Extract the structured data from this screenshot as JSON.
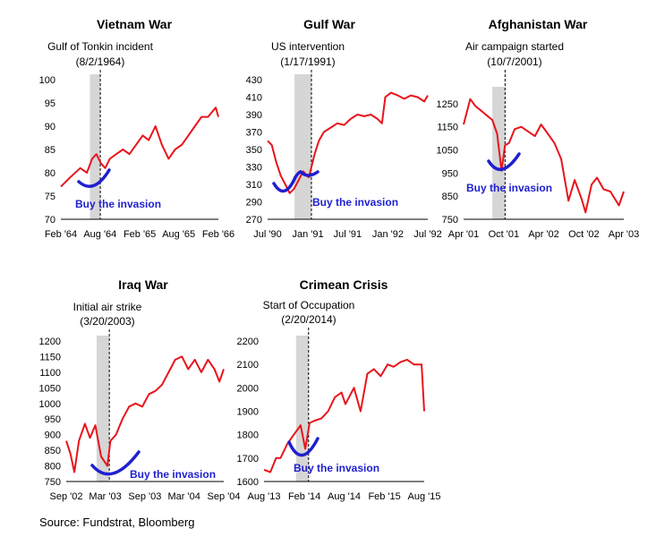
{
  "source": "Source: Fundstrat, Bloomberg",
  "colors": {
    "series": "#e8141b",
    "annotation": "#1f1fd0",
    "shade": "#d6d6d6",
    "axis": "#000000"
  },
  "chart_data": [
    {
      "type": "line",
      "title": "Vietnam War",
      "event": {
        "label": "Gulf of Tonkin incident",
        "date_label": "(8/2/1964)",
        "shade": [
          "1964-06-15",
          "1964-08-02"
        ],
        "date": "1964-08-02"
      },
      "annotation": "Buy the invasion",
      "xlim": [
        "1964-02-01",
        "1966-02-01"
      ],
      "ylim": [
        70,
        100
      ],
      "yticks": [
        70,
        75,
        80,
        85,
        90,
        95,
        100
      ],
      "xticks": [
        {
          "date": "1964-02-01",
          "label": "Feb '64"
        },
        {
          "date": "1964-08-01",
          "label": "Aug '64"
        },
        {
          "date": "1965-02-01",
          "label": "Feb '65"
        },
        {
          "date": "1965-08-01",
          "label": "Aug '65"
        },
        {
          "date": "1966-02-01",
          "label": "Feb '66"
        }
      ],
      "series": [
        {
          "x": [
            "1964-02-01",
            "1964-03-15",
            "1964-05-01",
            "1964-06-01",
            "1964-06-25",
            "1964-07-15",
            "1964-08-05",
            "1964-08-25",
            "1964-09-15",
            "1964-10-15",
            "1964-11-15",
            "1964-12-15",
            "1965-01-15",
            "1965-02-15",
            "1965-03-15",
            "1965-04-15",
            "1965-05-15",
            "1965-06-15",
            "1965-07-15",
            "1965-08-15",
            "1965-09-15",
            "1965-10-15",
            "1965-11-15",
            "1965-12-15",
            "1966-01-20",
            "1966-02-01"
          ],
          "y": [
            77,
            79,
            81,
            80,
            83,
            84,
            82,
            81,
            83,
            84,
            85,
            84,
            86,
            88,
            87,
            90,
            86,
            83,
            85,
            86,
            88,
            90,
            92,
            92,
            94,
            92
          ]
        }
      ]
    },
    {
      "type": "line",
      "title": "Gulf War",
      "event": {
        "label": "US intervention",
        "date_label": "(1/17/1991)",
        "shade": [
          "1990-11-01",
          "1991-01-17"
        ],
        "date": "1991-01-17"
      },
      "annotation": "Buy the invasion",
      "xlim": [
        "1990-07-01",
        "1992-07-01"
      ],
      "ylim": [
        270,
        430
      ],
      "yticks": [
        270,
        290,
        310,
        330,
        350,
        370,
        390,
        410,
        430
      ],
      "xticks": [
        {
          "date": "1990-07-01",
          "label": "Jul '90"
        },
        {
          "date": "1991-01-01",
          "label": "Jan '91"
        },
        {
          "date": "1991-07-01",
          "label": "Jul '91"
        },
        {
          "date": "1992-01-01",
          "label": "Jan '92"
        },
        {
          "date": "1992-07-01",
          "label": "Jul '92"
        }
      ],
      "series": [
        {
          "x": [
            "1990-07-01",
            "1990-07-20",
            "1990-08-10",
            "1990-08-30",
            "1990-09-20",
            "1990-10-10",
            "1990-10-30",
            "1990-11-20",
            "1990-12-10",
            "1991-01-05",
            "1991-01-17",
            "1991-02-01",
            "1991-02-20",
            "1991-03-15",
            "1991-04-15",
            "1991-05-15",
            "1991-06-15",
            "1991-07-15",
            "1991-08-15",
            "1991-09-15",
            "1991-10-15",
            "1991-11-15",
            "1991-12-05",
            "1991-12-20",
            "1992-01-15",
            "1992-02-15",
            "1992-03-15",
            "1992-04-15",
            "1992-05-15",
            "1992-06-15",
            "1992-07-01"
          ],
          "y": [
            360,
            355,
            335,
            320,
            310,
            300,
            305,
            315,
            325,
            318,
            330,
            345,
            360,
            370,
            375,
            380,
            378,
            385,
            390,
            388,
            390,
            385,
            380,
            410,
            415,
            412,
            408,
            412,
            410,
            405,
            412
          ]
        }
      ]
    },
    {
      "type": "line",
      "title": "Afghanistan War",
      "event": {
        "label": "Air campaign started",
        "date_label": "(10/7/2001)",
        "shade": [
          "2001-08-10",
          "2001-10-07"
        ],
        "date": "2001-10-07"
      },
      "annotation": "Buy the invasion",
      "xlim": [
        "2001-04-01",
        "2003-04-01"
      ],
      "ylim": [
        750,
        1300
      ],
      "yticks": [
        750,
        850,
        950,
        1050,
        1150,
        1250
      ],
      "xticks": [
        {
          "date": "2001-04-01",
          "label": "Apr '01"
        },
        {
          "date": "2001-10-01",
          "label": "Oct '01"
        },
        {
          "date": "2002-04-01",
          "label": "Apr '02"
        },
        {
          "date": "2002-10-01",
          "label": "Oct '02"
        },
        {
          "date": "2003-04-01",
          "label": "Apr '03"
        }
      ],
      "series": [
        {
          "x": [
            "2001-04-01",
            "2001-05-01",
            "2001-05-25",
            "2001-06-20",
            "2001-07-15",
            "2001-08-10",
            "2001-09-01",
            "2001-09-21",
            "2001-10-07",
            "2001-10-25",
            "2001-11-20",
            "2001-12-20",
            "2002-01-20",
            "2002-02-20",
            "2002-03-20",
            "2002-04-20",
            "2002-05-20",
            "2002-06-20",
            "2002-07-23",
            "2002-08-20",
            "2002-09-20",
            "2002-10-09",
            "2002-11-05",
            "2002-11-30",
            "2002-12-30",
            "2003-01-30",
            "2003-03-10",
            "2003-04-01"
          ],
          "y": [
            1160,
            1270,
            1240,
            1220,
            1200,
            1180,
            1120,
            960,
            1070,
            1080,
            1140,
            1150,
            1130,
            1110,
            1160,
            1120,
            1080,
            1010,
            830,
            920,
            840,
            780,
            900,
            930,
            880,
            870,
            810,
            870
          ]
        }
      ]
    },
    {
      "type": "line",
      "title": "Iraq War",
      "event": {
        "label": "Initial air strike",
        "date_label": "(3/20/2003)",
        "shade": [
          "2003-01-20",
          "2003-03-20"
        ],
        "date": "2003-03-20"
      },
      "annotation": "Buy the invasion",
      "xlim": [
        "2002-09-01",
        "2004-09-01"
      ],
      "ylim": [
        750,
        1200
      ],
      "yticks": [
        750,
        800,
        850,
        900,
        950,
        1000,
        1050,
        1100,
        1150,
        1200
      ],
      "xticks": [
        {
          "date": "2002-09-01",
          "label": "Sep '02"
        },
        {
          "date": "2003-03-01",
          "label": "Mar '03"
        },
        {
          "date": "2003-09-01",
          "label": "Sep '03"
        },
        {
          "date": "2004-03-01",
          "label": "Mar '04"
        },
        {
          "date": "2004-09-01",
          "label": "Sep '04"
        }
      ],
      "series": [
        {
          "x": [
            "2002-09-01",
            "2002-09-20",
            "2002-10-09",
            "2002-10-30",
            "2002-11-27",
            "2002-12-20",
            "2003-01-14",
            "2003-02-10",
            "2003-03-11",
            "2003-03-25",
            "2003-04-20",
            "2003-05-20",
            "2003-06-20",
            "2003-07-20",
            "2003-08-20",
            "2003-09-20",
            "2003-10-20",
            "2003-11-20",
            "2003-12-20",
            "2004-01-20",
            "2004-02-20",
            "2004-03-20",
            "2004-04-20",
            "2004-05-20",
            "2004-06-20",
            "2004-07-20",
            "2004-08-12",
            "2004-09-01"
          ],
          "y": [
            880,
            840,
            780,
            880,
            935,
            890,
            930,
            830,
            800,
            880,
            900,
            950,
            990,
            1000,
            990,
            1030,
            1040,
            1060,
            1100,
            1140,
            1150,
            1110,
            1140,
            1100,
            1140,
            1110,
            1070,
            1110
          ]
        }
      ]
    },
    {
      "type": "line",
      "title": "Crimean Crisis",
      "event": {
        "label": "Start of Occupation",
        "date_label": "(2/20/2014)",
        "shade": [
          "2013-12-25",
          "2014-02-20"
        ],
        "date": "2014-02-20"
      },
      "annotation": "Buy the invasion",
      "xlim": [
        "2013-08-01",
        "2015-08-01"
      ],
      "ylim": [
        1600,
        2200
      ],
      "yticks": [
        1600,
        1700,
        1800,
        1900,
        2000,
        2100,
        2200
      ],
      "xticks": [
        {
          "date": "2013-08-01",
          "label": "Aug '13"
        },
        {
          "date": "2014-02-01",
          "label": "Feb '14"
        },
        {
          "date": "2014-08-01",
          "label": "Aug '14"
        },
        {
          "date": "2015-02-01",
          "label": "Feb '15"
        },
        {
          "date": "2015-08-01",
          "label": "Aug '15"
        }
      ],
      "series": [
        {
          "x": [
            "2013-08-01",
            "2013-08-30",
            "2013-09-25",
            "2013-10-15",
            "2013-11-15",
            "2013-12-15",
            "2014-01-15",
            "2014-02-05",
            "2014-02-25",
            "2014-03-20",
            "2014-04-20",
            "2014-05-20",
            "2014-06-20",
            "2014-07-20",
            "2014-08-07",
            "2014-09-15",
            "2014-10-15",
            "2014-11-15",
            "2014-12-15",
            "2015-01-15",
            "2015-02-15",
            "2015-03-15",
            "2015-04-15",
            "2015-05-15",
            "2015-06-15",
            "2015-07-20",
            "2015-08-01"
          ],
          "y": [
            1650,
            1640,
            1700,
            1700,
            1760,
            1800,
            1840,
            1740,
            1850,
            1860,
            1870,
            1900,
            1960,
            1980,
            1930,
            2000,
            1900,
            2060,
            2080,
            2050,
            2100,
            2090,
            2110,
            2120,
            2100,
            2100,
            1900
          ]
        }
      ]
    }
  ]
}
